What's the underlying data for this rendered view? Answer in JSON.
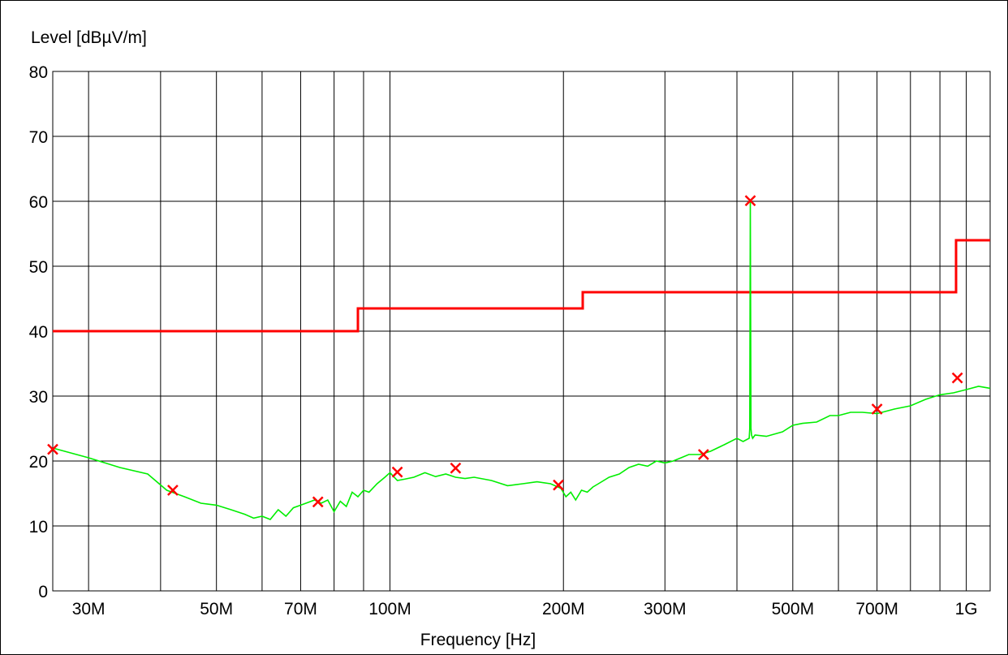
{
  "chart_data": {
    "type": "line",
    "title": "",
    "ylabel": "Level [dBµV/m]",
    "xlabel": "Frequency [Hz]",
    "x_scale": "log",
    "xlim": [
      26,
      1100
    ],
    "ylim": [
      0,
      80
    ],
    "grid": true,
    "x_ticks": [
      {
        "value": 30,
        "label": "30M"
      },
      {
        "value": 40,
        "label": ""
      },
      {
        "value": 50,
        "label": "50M"
      },
      {
        "value": 60,
        "label": ""
      },
      {
        "value": 70,
        "label": "70M"
      },
      {
        "value": 80,
        "label": ""
      },
      {
        "value": 90,
        "label": ""
      },
      {
        "value": 100,
        "label": "100M"
      },
      {
        "value": 200,
        "label": "200M"
      },
      {
        "value": 300,
        "label": "300M"
      },
      {
        "value": 400,
        "label": ""
      },
      {
        "value": 500,
        "label": "500M"
      },
      {
        "value": 600,
        "label": ""
      },
      {
        "value": 700,
        "label": "700M"
      },
      {
        "value": 800,
        "label": ""
      },
      {
        "value": 900,
        "label": ""
      },
      {
        "value": 1000,
        "label": "1G"
      }
    ],
    "y_ticks": [
      {
        "value": 0,
        "label": "0"
      },
      {
        "value": 10,
        "label": "10"
      },
      {
        "value": 20,
        "label": "20"
      },
      {
        "value": 30,
        "label": "30"
      },
      {
        "value": 40,
        "label": "40"
      },
      {
        "value": 50,
        "label": "50"
      },
      {
        "value": 60,
        "label": "60"
      },
      {
        "value": 70,
        "label": "70"
      },
      {
        "value": 80,
        "label": "80"
      }
    ],
    "series": [
      {
        "color": "#ff0000",
        "style": "step",
        "x": [
          26,
          88,
          88,
          216,
          216,
          960,
          960,
          1100
        ],
        "y": [
          40,
          40,
          43.5,
          43.5,
          46,
          46,
          54,
          54
        ]
      },
      {
        "color": "#00ee00",
        "style": "line",
        "x": [
          26,
          30,
          34,
          38,
          41,
          44,
          47,
          50,
          53,
          56,
          58,
          60,
          62,
          64,
          66,
          68,
          70,
          74,
          76,
          78,
          80,
          82,
          84,
          86,
          88,
          90,
          92,
          95,
          98,
          100,
          103,
          106,
          110,
          115,
          120,
          125,
          130,
          135,
          140,
          150,
          160,
          170,
          180,
          190,
          198,
          202,
          206,
          210,
          215,
          220,
          225,
          230,
          240,
          250,
          260,
          270,
          280,
          290,
          300,
          310,
          320,
          330,
          345,
          360,
          380,
          400,
          410,
          420,
          421,
          422,
          423,
          424,
          426,
          430,
          450,
          480,
          500,
          520,
          550,
          580,
          600,
          630,
          660,
          700,
          750,
          800,
          850,
          900,
          950,
          1000,
          1050,
          1100
        ],
        "y": [
          22,
          20.5,
          19,
          18,
          15.5,
          14.5,
          13.5,
          13.2,
          12.5,
          11.8,
          11.2,
          11.5,
          11,
          12.5,
          11.5,
          12.8,
          13.2,
          14,
          13.5,
          14,
          12.2,
          13.8,
          13,
          15.2,
          14.5,
          15.5,
          15.2,
          16.5,
          17.5,
          18.2,
          17,
          17.2,
          17.5,
          18.2,
          17.6,
          18,
          17.5,
          17.3,
          17.5,
          17,
          16.2,
          16.5,
          16.8,
          16.5,
          15.8,
          14.5,
          15.2,
          14,
          15.5,
          15.2,
          16,
          16.5,
          17.5,
          18,
          19,
          19.5,
          19.2,
          20,
          19.7,
          20,
          20.5,
          21,
          21,
          21.5,
          22.5,
          23.5,
          23,
          23.5,
          25,
          60,
          25,
          24,
          23.5,
          24,
          23.8,
          24.5,
          25.5,
          25.8,
          26,
          27,
          27,
          27.5,
          27.5,
          27.3,
          28,
          28.5,
          29.5,
          30.2,
          30.5,
          31,
          31.5,
          31.2
        ]
      }
    ],
    "markers": {
      "symbol": "x",
      "color": "#ff0000",
      "x": [
        26,
        42,
        75,
        103,
        130,
        196,
        350,
        422,
        700,
        965
      ],
      "y": [
        21.8,
        15.5,
        13.7,
        18.3,
        18.9,
        16.3,
        21,
        60.1,
        28,
        32.8
      ]
    }
  }
}
